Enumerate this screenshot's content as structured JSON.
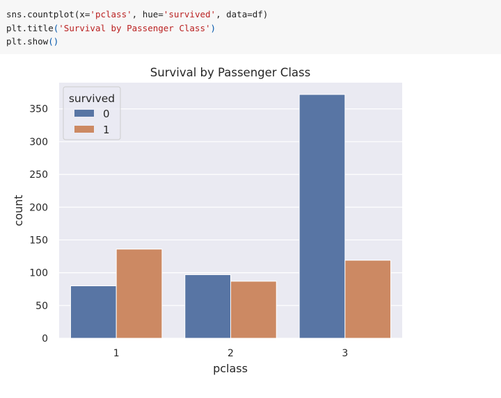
{
  "code": {
    "line1": {
      "pre": "sns.countplot(x=",
      "s1": "'pclass'",
      "m1": ", hue=",
      "s2": "'survived'",
      "m2": ", data=df",
      "close": ")"
    },
    "line2": {
      "pre": "plt.title",
      "open": "(",
      "s1": "'Survival by Passenger Class'",
      "close": ")"
    },
    "line3": {
      "pre": "plt.show",
      "parens": "()"
    }
  },
  "colors": {
    "series_0": "#5875a4",
    "series_1": "#cc8963",
    "plot_bg": "#eaeaf2",
    "grid": "#ffffff"
  },
  "chart_data": {
    "type": "bar",
    "title": "Survival by Passenger Class",
    "xlabel": "pclass",
    "ylabel": "count",
    "categories": [
      "1",
      "2",
      "3"
    ],
    "series": [
      {
        "name": "0",
        "values": [
          80,
          97,
          372
        ]
      },
      {
        "name": "1",
        "values": [
          136,
          87,
          119
        ]
      }
    ],
    "ylim": [
      0,
      390
    ],
    "yticks": [
      0,
      50,
      100,
      150,
      200,
      250,
      300,
      350
    ],
    "legend": {
      "title": "survived",
      "placement": "upper left"
    },
    "grid": true
  }
}
